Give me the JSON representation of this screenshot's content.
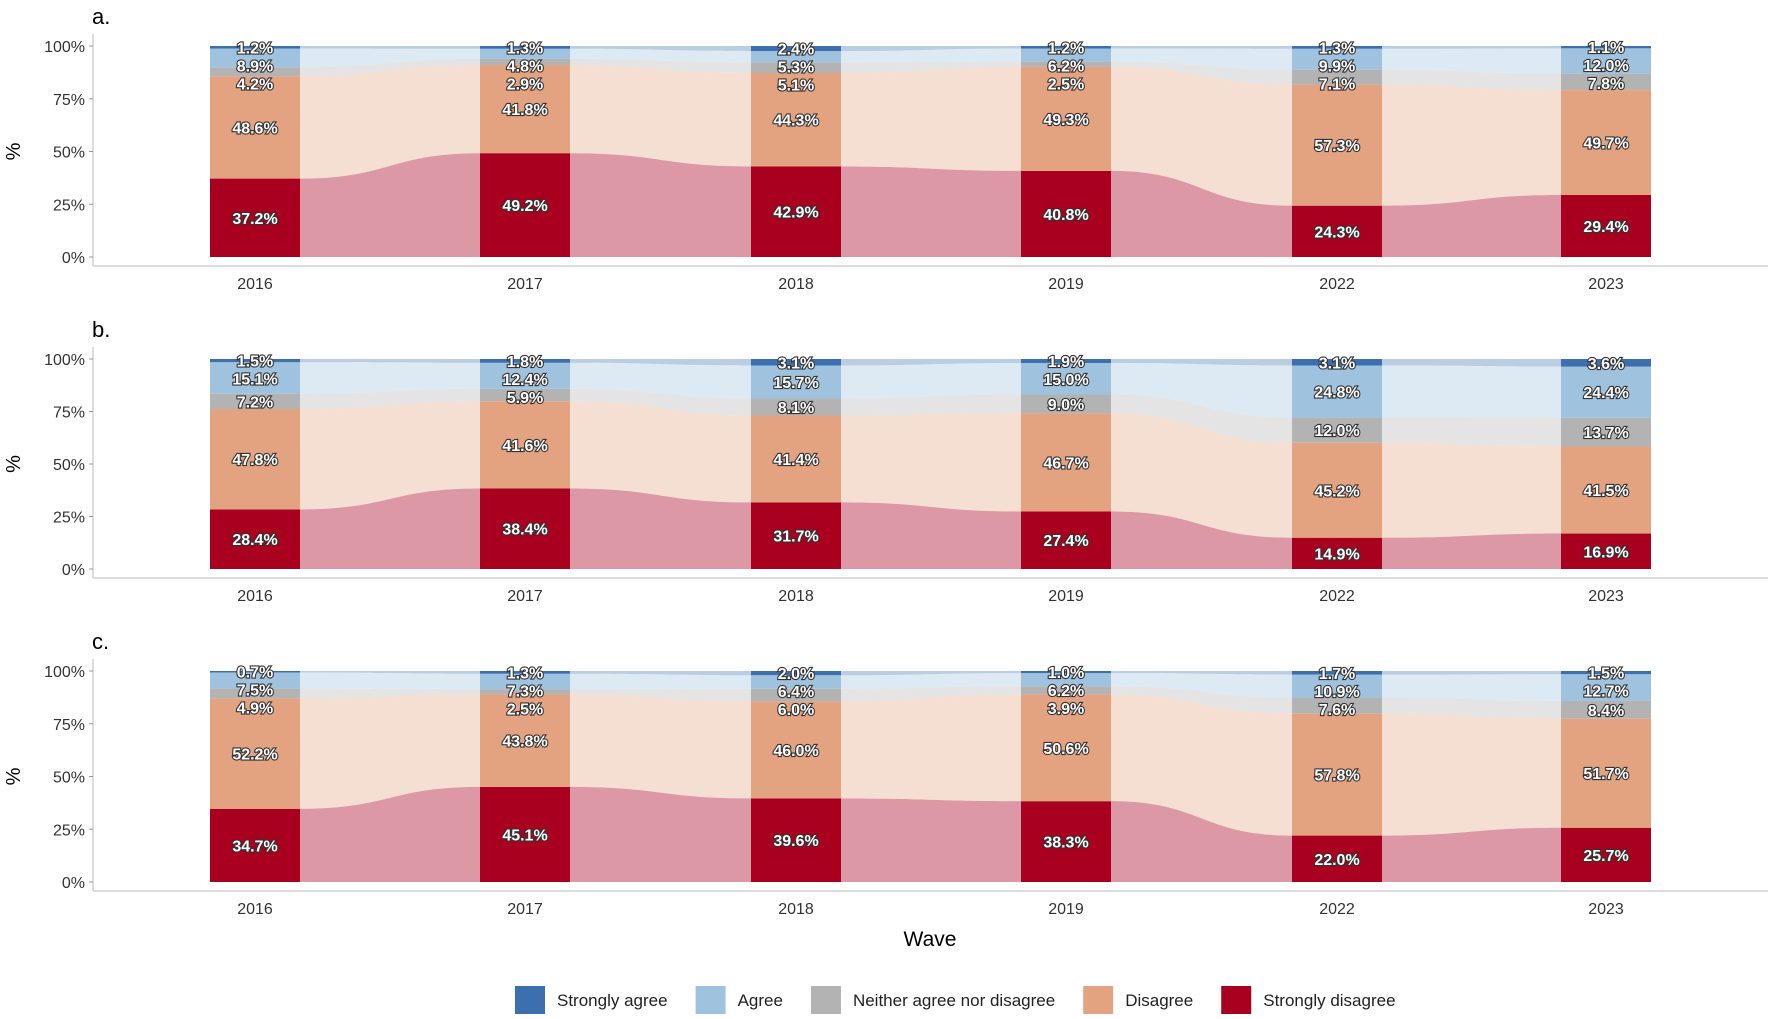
{
  "chart_data": {
    "type": "bar",
    "subtype": "alluvial",
    "categories": [
      "2016",
      "2017",
      "2018",
      "2019",
      "2022",
      "2023"
    ],
    "xlabel": "Wave",
    "ylabel": "%",
    "yticks": [
      "0%",
      "25%",
      "50%",
      "75%",
      "100%"
    ],
    "ylim": [
      0,
      100
    ],
    "legend_position": "bottom",
    "legend": [
      "Strongly agree",
      "Agree",
      "Neither agree nor disagree",
      "Disagree",
      "Strongly disagree"
    ],
    "colors": {
      "Strongly agree": "#3b6fb0",
      "Agree": "#9fc3de",
      "Neither agree nor disagree": "#b3b3b3",
      "Disagree": "#e3a280",
      "Strongly disagree": "#a8001e"
    },
    "panels": [
      {
        "title": "a.",
        "series": [
          {
            "name": "Strongly agree",
            "values": [
              1.2,
              1.3,
              2.4,
              1.2,
              1.3,
              1.1
            ]
          },
          {
            "name": "Agree",
            "values": [
              8.9,
              4.8,
              5.3,
              6.2,
              9.9,
              12.0
            ]
          },
          {
            "name": "Neither agree nor disagree",
            "values": [
              4.2,
              2.9,
              5.1,
              2.5,
              7.1,
              7.8
            ]
          },
          {
            "name": "Disagree",
            "values": [
              48.6,
              41.8,
              44.3,
              49.3,
              57.3,
              49.7
            ]
          },
          {
            "name": "Strongly disagree",
            "values": [
              37.2,
              49.2,
              42.9,
              40.8,
              24.3,
              29.4
            ]
          }
        ]
      },
      {
        "title": "b.",
        "series": [
          {
            "name": "Strongly agree",
            "values": [
              1.5,
              1.8,
              3.1,
              1.9,
              3.1,
              3.6
            ]
          },
          {
            "name": "Agree",
            "values": [
              15.1,
              12.4,
              15.7,
              15.0,
              24.8,
              24.4
            ]
          },
          {
            "name": "Neither agree nor disagree",
            "values": [
              7.2,
              5.9,
              8.1,
              9.0,
              12.0,
              13.7
            ]
          },
          {
            "name": "Disagree",
            "values": [
              47.8,
              41.6,
              41.4,
              46.7,
              45.2,
              41.5
            ]
          },
          {
            "name": "Strongly disagree",
            "values": [
              28.4,
              38.4,
              31.7,
              27.4,
              14.9,
              16.9
            ]
          }
        ]
      },
      {
        "title": "c.",
        "series": [
          {
            "name": "Strongly agree",
            "values": [
              0.7,
              1.3,
              2.0,
              1.0,
              1.7,
              1.5
            ]
          },
          {
            "name": "Agree",
            "values": [
              7.5,
              7.3,
              6.4,
              6.2,
              10.9,
              12.7
            ]
          },
          {
            "name": "Neither agree nor disagree",
            "values": [
              4.9,
              2.5,
              6.0,
              3.9,
              7.6,
              8.4
            ]
          },
          {
            "name": "Disagree",
            "values": [
              52.2,
              43.8,
              46.0,
              50.6,
              57.8,
              51.7
            ]
          },
          {
            "name": "Strongly disagree",
            "values": [
              34.7,
              45.1,
              39.6,
              38.3,
              22.0,
              25.7
            ]
          }
        ]
      }
    ]
  }
}
